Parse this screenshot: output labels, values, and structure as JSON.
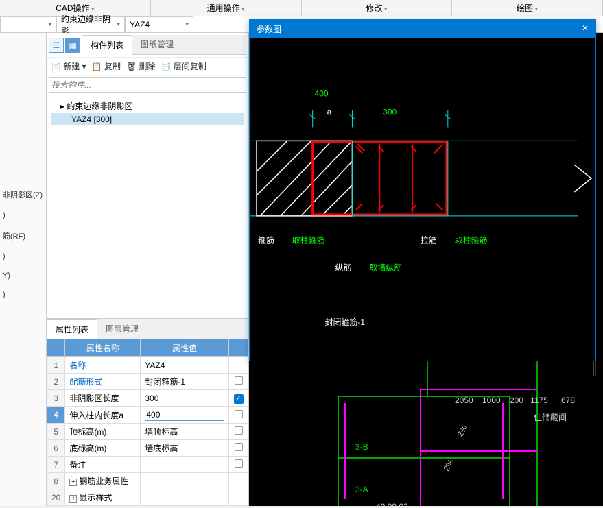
{
  "top_menu": [
    "CAD操作",
    "通用操作",
    "修改",
    "绘图"
  ],
  "dropdowns": {
    "d1": "",
    "d2": "约束边缘非阴影",
    "d3": "YAZ4"
  },
  "left_strip_items": [
    "非阴影区(Z)",
    ")",
    "筋(RF)",
    ")",
    "Y)",
    ")"
  ],
  "mid_tabs": {
    "t1": "构件列表",
    "t2": "图纸管理"
  },
  "toolbar": {
    "new": "新建",
    "copy": "复制",
    "del": "删除",
    "layer": "层间复制"
  },
  "search_placeholder": "搜索构件...",
  "tree": {
    "root": "约束边缘非阴影区",
    "child": "YAZ4 [300]"
  },
  "prop_tabs": {
    "t1": "属性列表",
    "t2": "图层管理"
  },
  "prop_header": {
    "c1": "属性名称",
    "c2": "属性值"
  },
  "props": [
    {
      "n": "1",
      "name": "名称",
      "val": "YAZ4",
      "link": true,
      "cb": null
    },
    {
      "n": "2",
      "name": "配筋形式",
      "val": "封闭箍筋-1",
      "link": true,
      "cb": false
    },
    {
      "n": "3",
      "name": "非阴影区长度",
      "val": "300",
      "link": false,
      "cb": true
    },
    {
      "n": "4",
      "name": "伸入柱内长度a",
      "val": "400",
      "link": false,
      "cb": false,
      "selected": true
    },
    {
      "n": "5",
      "name": "顶标高(m)",
      "val": "墙顶标高",
      "link": false,
      "cb": false
    },
    {
      "n": "6",
      "name": "底标高(m)",
      "val": "墙底标高",
      "link": false,
      "cb": false
    },
    {
      "n": "7",
      "name": "备注",
      "val": "",
      "link": false,
      "cb": false
    },
    {
      "n": "8",
      "name": "钢筋业务属性",
      "val": "",
      "link": false,
      "cb": null,
      "expand": true
    },
    {
      "n": "20",
      "name": "显示样式",
      "val": "",
      "link": false,
      "cb": null,
      "expand": true
    }
  ],
  "param_panel": {
    "title": "参数图",
    "dim_400": "400",
    "dim_a": "a",
    "dim_300": "300",
    "label_guji": "箍筋",
    "label_quzhu_guji": "取柱箍筋",
    "label_laji": "拉筋",
    "label_zongji": "纵筋",
    "label_quqiang_zongji": "取墙纵筋",
    "big_title": "封闭箍筋-1",
    "colors": {
      "green": "#00ff00",
      "cyan": "#00e0e0",
      "red": "#ff0000",
      "white": "#ffffff"
    }
  }
}
